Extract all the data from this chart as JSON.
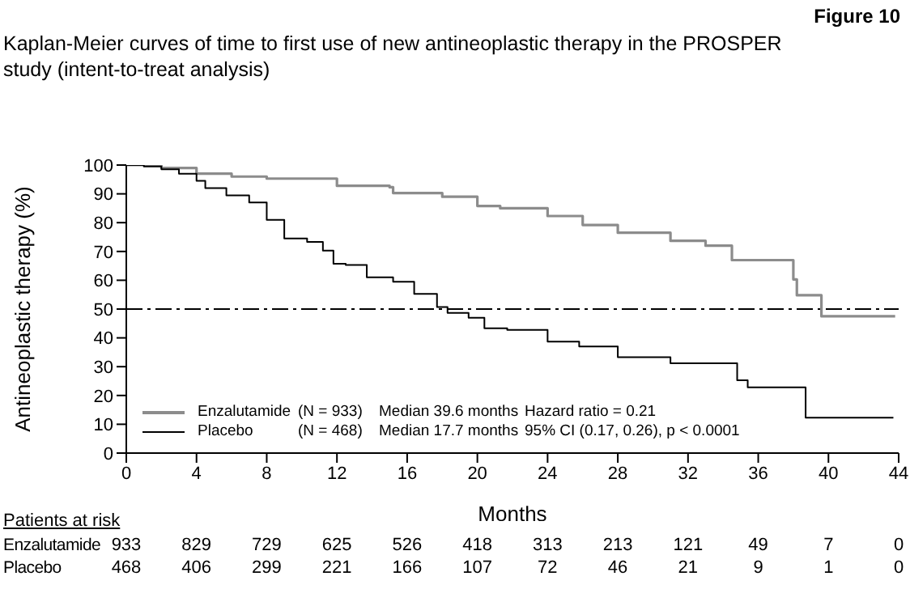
{
  "chart_data": {
    "type": "step",
    "title": "Kaplan-Meier curves of time to first use of new antineoplastic therapy in the PROSPER study (intent-to-treat analysis)",
    "xlabel": "Months",
    "ylabel": "Antineoplastic therapy (%)",
    "xlim": [
      0,
      44
    ],
    "xticks": [
      0,
      4,
      8,
      12,
      16,
      20,
      24,
      28,
      32,
      36,
      40,
      44
    ],
    "ylim": [
      0,
      100
    ],
    "yticks": [
      0,
      10,
      20,
      30,
      40,
      50,
      60,
      70,
      80,
      90,
      100
    ],
    "grid": false,
    "legend": "bottom left",
    "marker": "none",
    "line_style": "solid",
    "ref_lines": [
      {
        "axis": "y",
        "value": 50,
        "line_style": "dashed",
        "color": "#000000"
      }
    ],
    "annotations": [
      "Figure 10",
      "(N = 933)",
      "Median 39.6 months",
      "Hazard ratio = 0.21",
      "(N = 468)",
      "Median 17.7 months",
      "95% CI (0.17, 0.26), p < 0.0001",
      "Patients at risk",
      "933 829 729 625 526 418 313 213 121 49 7 0",
      "468 406 299 221 166 107 72 46 21 9 1 0"
    ],
    "series": [
      {
        "name": "Enzalutamide",
        "color": "#8c8c8c",
        "x": [
          0,
          2,
          4,
          6,
          8,
          12,
          15,
          15.2,
          18,
          20,
          21.3,
          24,
          26,
          28,
          31,
          33,
          34.5,
          37.5,
          38,
          38.2,
          39.6,
          43.8
        ],
        "values": [
          100,
          99,
          97,
          96,
          95.3,
          92.8,
          92.3,
          90.3,
          89,
          85.8,
          85,
          82.3,
          79.2,
          76.5,
          73.7,
          72,
          67,
          67,
          60.3,
          54.8,
          47.5,
          47.5
        ]
      },
      {
        "name": "Placebo",
        "color": "#000000",
        "x": [
          0,
          1,
          2,
          3,
          4,
          4.5,
          5.7,
          7,
          8,
          9,
          10.3,
          11.2,
          11.8,
          12.5,
          13.7,
          15.2,
          16.4,
          17.7,
          18.3,
          19.5,
          20.4,
          21.7,
          24,
          25.8,
          28,
          31,
          34.5,
          34.8,
          35.4,
          38.7,
          43.7
        ],
        "values": [
          100,
          99.5,
          98.5,
          97,
          94.5,
          92,
          89.5,
          87,
          81,
          74.5,
          73.3,
          70.3,
          65.7,
          65.3,
          61,
          59.5,
          55.3,
          50.7,
          48.7,
          47,
          43.3,
          42.8,
          38.7,
          37,
          33.3,
          31.2,
          31.2,
          25.3,
          22.8,
          12.3,
          12.3
        ]
      }
    ]
  }
}
